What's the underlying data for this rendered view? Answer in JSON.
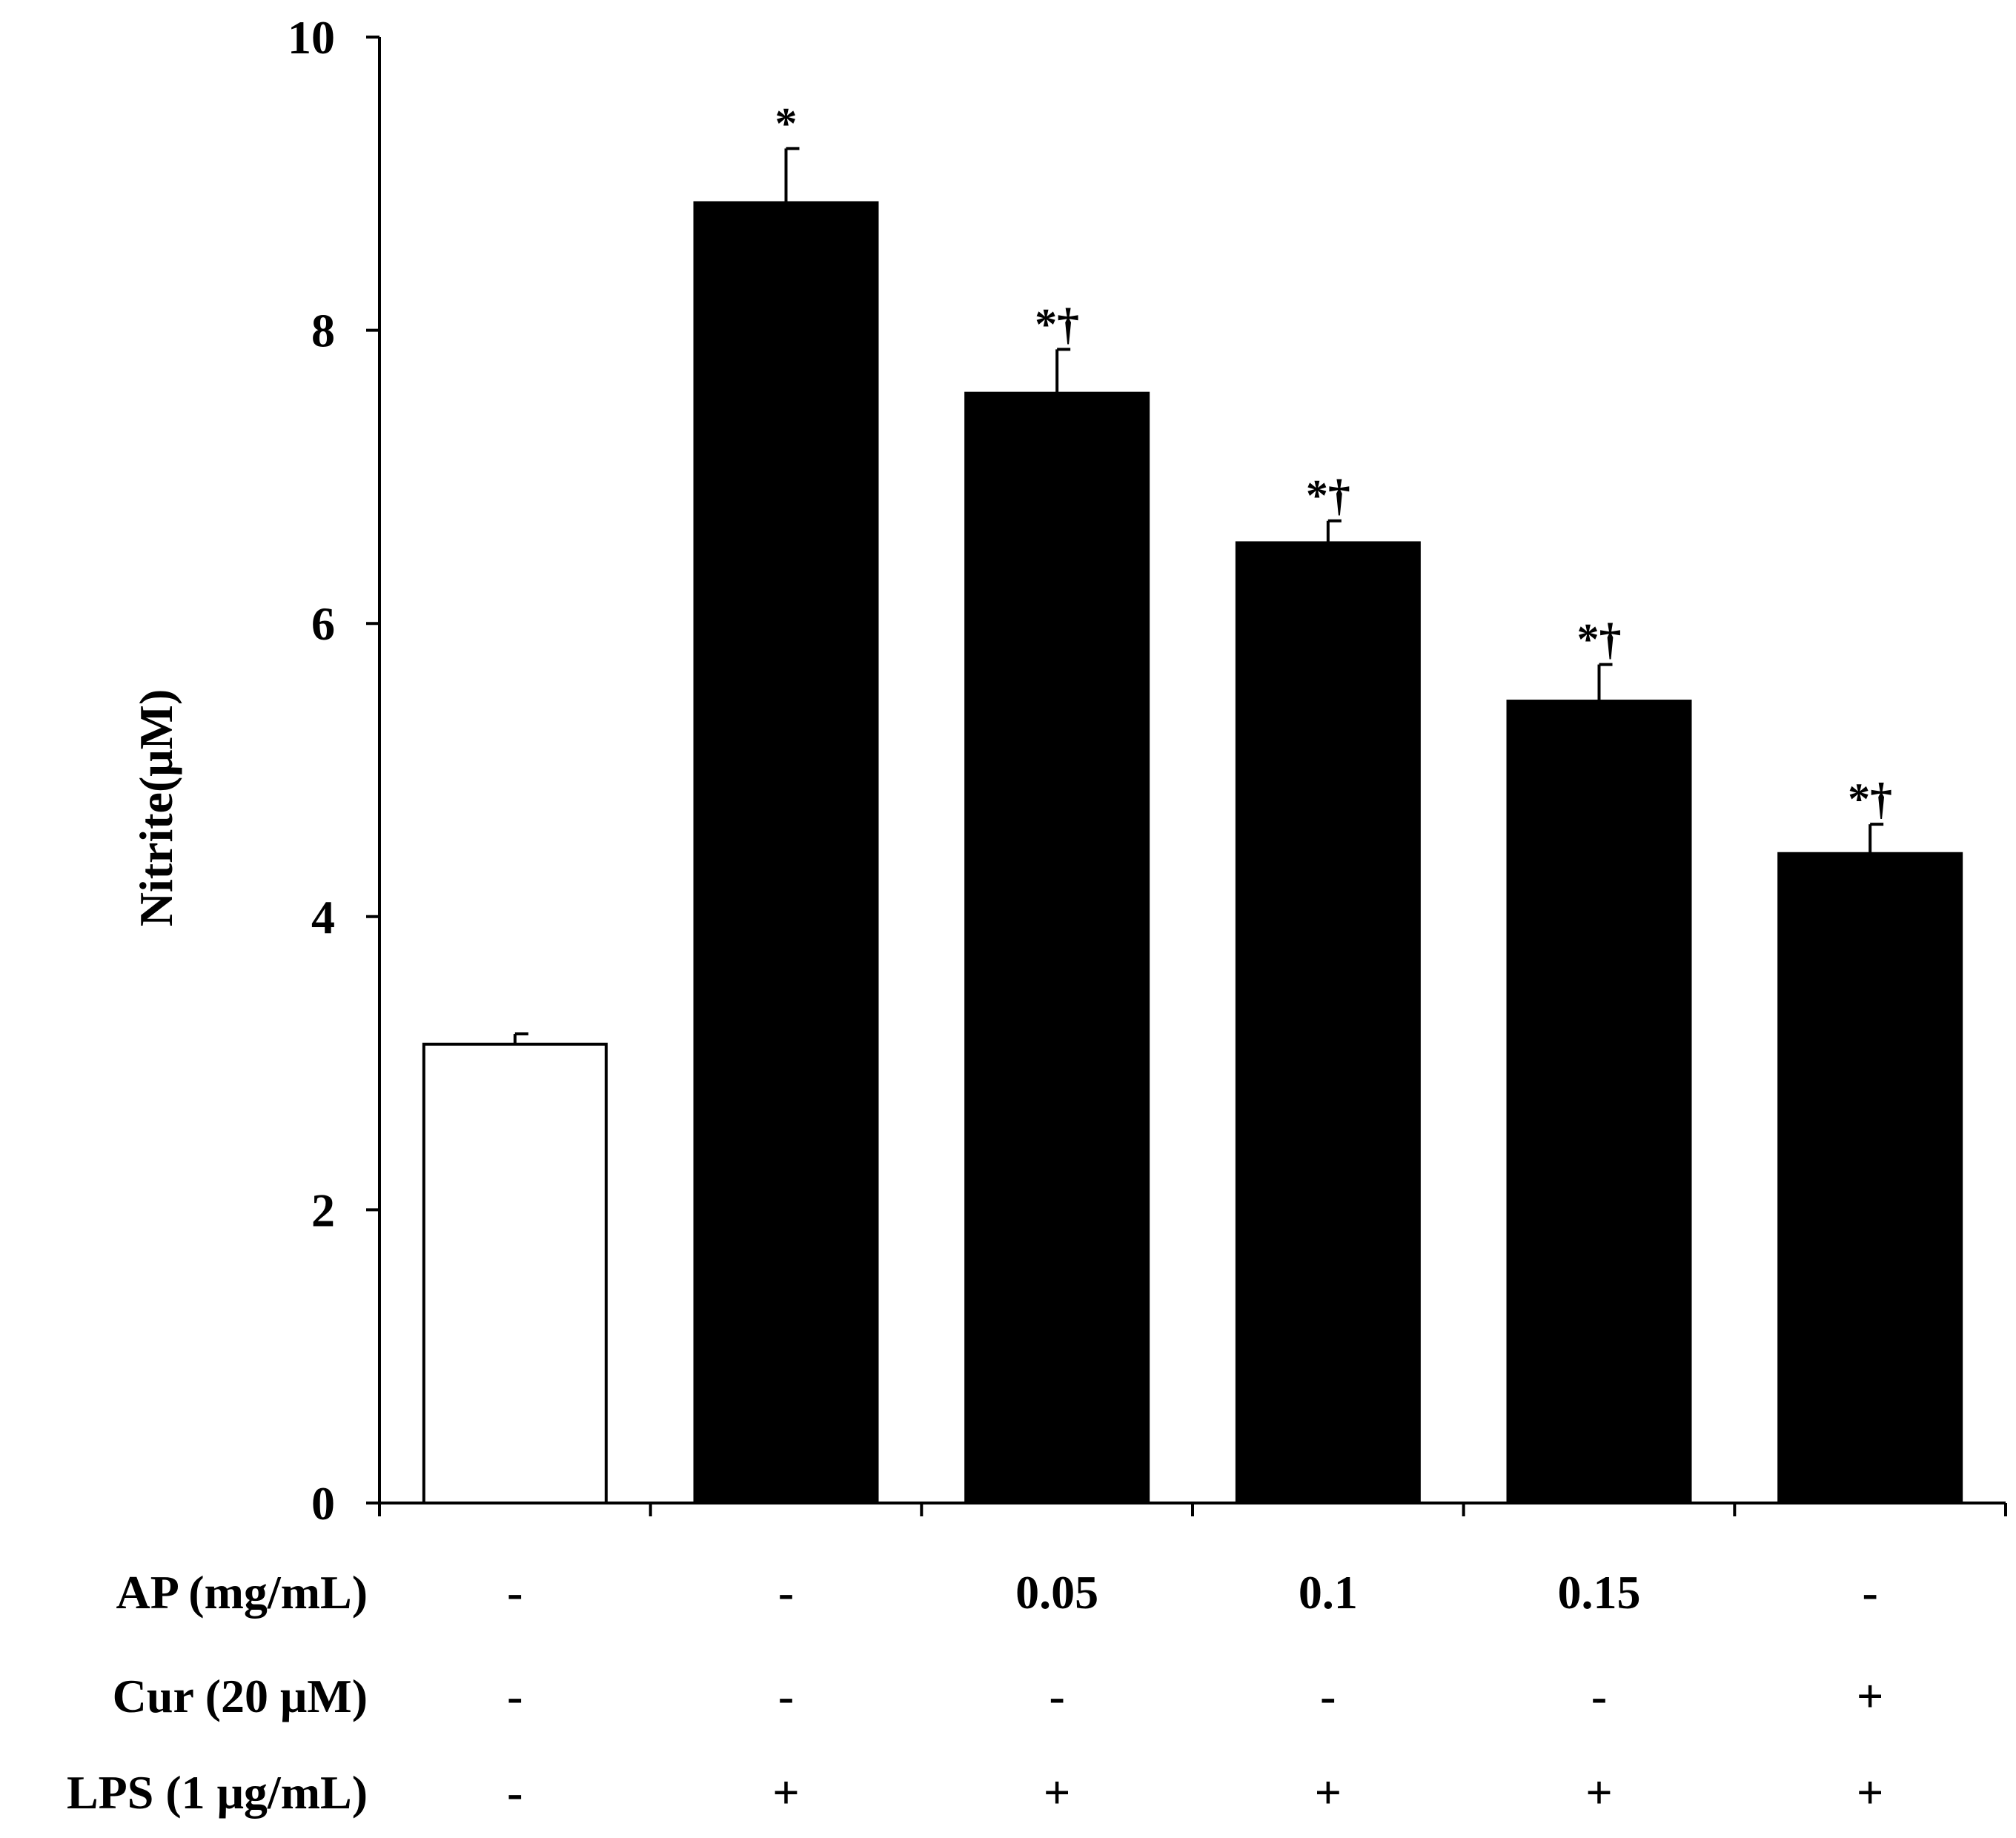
{
  "chart_data": {
    "type": "bar",
    "title": "",
    "xlabel": "",
    "ylabel": "Nitrite(μM)",
    "ylim": [
      0,
      10
    ],
    "yticks": [
      0,
      2,
      4,
      6,
      8,
      10
    ],
    "grid": false,
    "legend": "none",
    "values": [
      3.13,
      8.87,
      7.57,
      6.55,
      5.47,
      4.43
    ],
    "errors": [
      0.07,
      0.37,
      0.3,
      0.15,
      0.25,
      0.2
    ],
    "fills": [
      "#ffffff",
      "#000000",
      "#000000",
      "#000000",
      "#000000",
      "#000000"
    ],
    "annotations": [
      "",
      "*",
      "*†",
      "*†",
      "*†",
      "*†"
    ],
    "treatment_rows": [
      {
        "label": "AP (mg/mL)",
        "values": [
          "-",
          "-",
          "0.05",
          "0.1",
          "0.15",
          "-"
        ]
      },
      {
        "label": "Cur (20 μM)",
        "values": [
          "-",
          "-",
          "-",
          "-",
          "-",
          "+"
        ]
      },
      {
        "label": "LPS (1 μg/mL)",
        "values": [
          "-",
          "+",
          "+",
          "+",
          "+",
          "+"
        ]
      }
    ]
  }
}
